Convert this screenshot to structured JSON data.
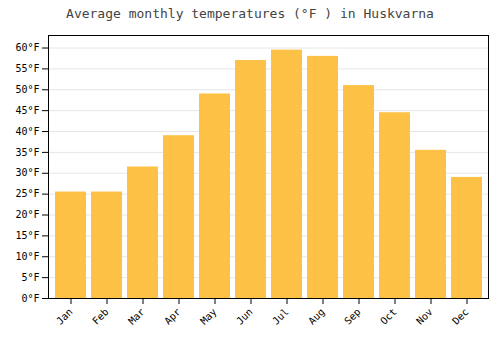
{
  "chart_data": {
    "type": "bar",
    "title": "Average monthly temperatures (°F ) in Huskvarna",
    "categories": [
      "Jan",
      "Feb",
      "Mar",
      "Apr",
      "May",
      "Jun",
      "Jul",
      "Aug",
      "Sep",
      "Oct",
      "Nov",
      "Dec"
    ],
    "values": [
      25.5,
      25.5,
      31.5,
      39.0,
      49.0,
      57.0,
      59.5,
      58.0,
      51.0,
      44.5,
      35.5,
      29.0
    ],
    "color": "#FDC245",
    "ylim": [
      0,
      63
    ],
    "yticks": [
      {
        "value": 0,
        "label": "0°F"
      },
      {
        "value": 5,
        "label": "5°F"
      },
      {
        "value": 10,
        "label": "10°F"
      },
      {
        "value": 15,
        "label": "15°F"
      },
      {
        "value": 20,
        "label": "20°F"
      },
      {
        "value": 25,
        "label": "25°F"
      },
      {
        "value": 30,
        "label": "30°F"
      },
      {
        "value": 35,
        "label": "35°F"
      },
      {
        "value": 40,
        "label": "40°F"
      },
      {
        "value": 45,
        "label": "45°F"
      },
      {
        "value": 50,
        "label": "50°F"
      },
      {
        "value": 55,
        "label": "55°F"
      },
      {
        "value": 60,
        "label": "60°F"
      }
    ],
    "grid": true
  }
}
